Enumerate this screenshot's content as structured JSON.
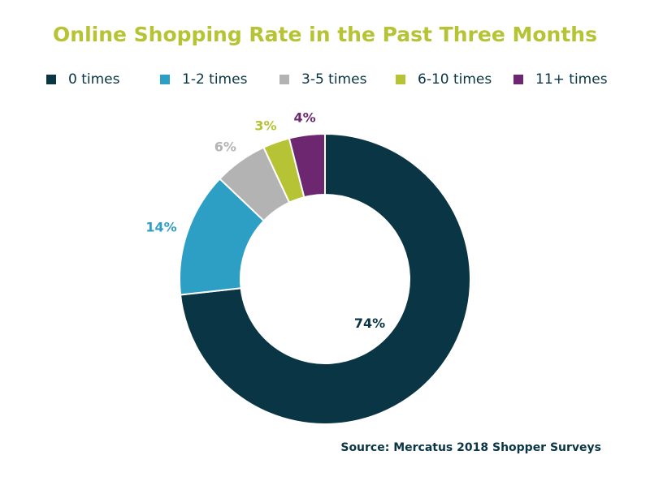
{
  "chart_data": {
    "type": "pie",
    "title": "Online Shopping Rate in the Past Three Months",
    "categories": [
      "0 times",
      "1-2 times",
      "3-5 times",
      "6-10 times",
      "11+ times"
    ],
    "values": [
      74,
      14,
      6,
      3,
      4
    ],
    "labels": [
      "74%",
      "14%",
      "6%",
      "3%",
      "4%"
    ],
    "colors": [
      "#0a3545",
      "#2e9fc4",
      "#b3b3b3",
      "#b5c334",
      "#6d2670"
    ],
    "label_colors": [
      "#0a3545",
      "#2e9fc4",
      "#b3b3b3",
      "#b5c334",
      "#6d2670"
    ],
    "style": "donut",
    "legend_position": "top",
    "source": "Source: Mercatus 2018 Shopper Surveys"
  }
}
